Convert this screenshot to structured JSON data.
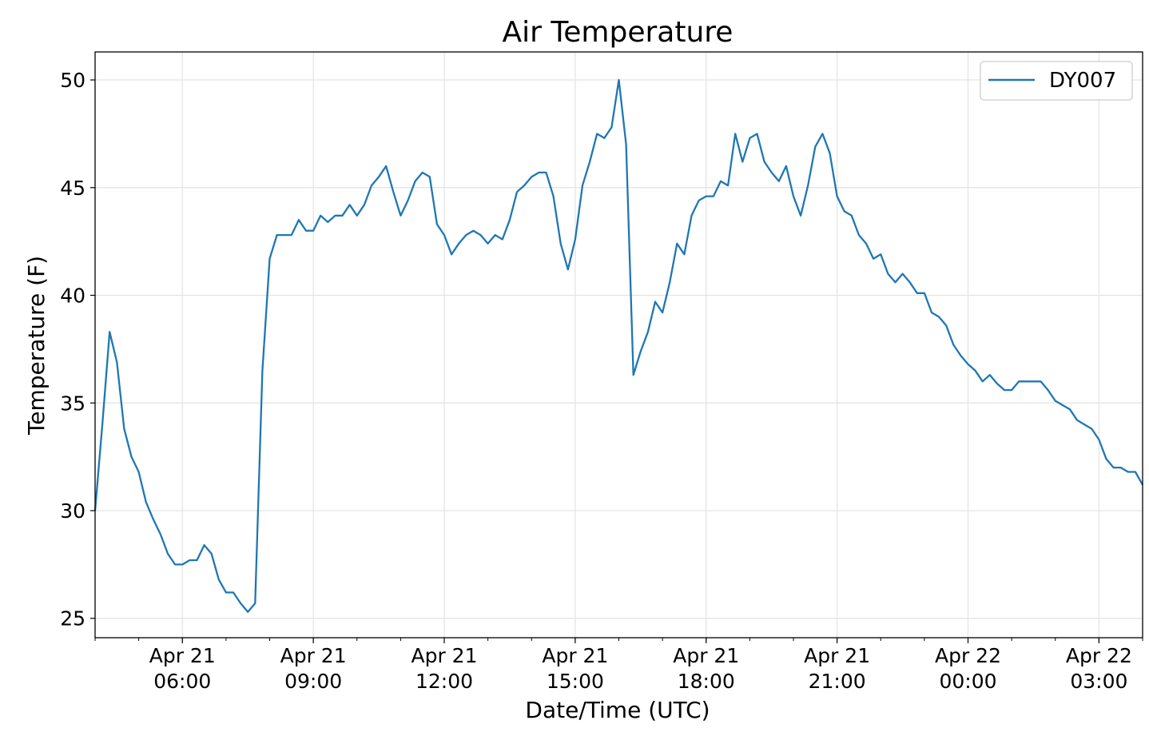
{
  "chart_data": {
    "type": "line",
    "title": "Air Temperature",
    "xlabel": "Date/Time (UTC)",
    "ylabel": "Temperature (F)",
    "xlim": [
      "2018-04-21T04:00",
      "2018-04-22T04:00"
    ],
    "ylim": [
      24.1,
      51.3
    ],
    "grid": true,
    "legend_position": "top-right",
    "y_ticks": [
      25,
      30,
      35,
      40,
      45,
      50
    ],
    "x_ticks": [
      {
        "x": "2018-04-21T06:00",
        "line1": "Apr 21",
        "line2": "06:00"
      },
      {
        "x": "2018-04-21T09:00",
        "line1": "Apr 21",
        "line2": "09:00"
      },
      {
        "x": "2018-04-21T12:00",
        "line1": "Apr 21",
        "line2": "12:00"
      },
      {
        "x": "2018-04-21T15:00",
        "line1": "Apr 21",
        "line2": "15:00"
      },
      {
        "x": "2018-04-21T18:00",
        "line1": "Apr 21",
        "line2": "18:00"
      },
      {
        "x": "2018-04-21T21:00",
        "line1": "Apr 21",
        "line2": "21:00"
      },
      {
        "x": "2018-04-22T00:00",
        "line1": "Apr 22",
        "line2": "00:00"
      },
      {
        "x": "2018-04-22T03:00",
        "line1": "Apr 22",
        "line2": "03:00"
      }
    ],
    "series": [
      {
        "name": "DY007",
        "color": "#1f77b4",
        "x": [
          "2018-04-21T04:00",
          "2018-04-21T04:10",
          "2018-04-21T04:20",
          "2018-04-21T04:30",
          "2018-04-21T04:40",
          "2018-04-21T04:50",
          "2018-04-21T05:00",
          "2018-04-21T05:10",
          "2018-04-21T05:20",
          "2018-04-21T05:30",
          "2018-04-21T05:40",
          "2018-04-21T05:50",
          "2018-04-21T06:00",
          "2018-04-21T06:10",
          "2018-04-21T06:20",
          "2018-04-21T06:30",
          "2018-04-21T06:40",
          "2018-04-21T06:50",
          "2018-04-21T07:00",
          "2018-04-21T07:10",
          "2018-04-21T07:20",
          "2018-04-21T07:30",
          "2018-04-21T07:40",
          "2018-04-21T07:50",
          "2018-04-21T08:00",
          "2018-04-21T08:10",
          "2018-04-21T08:20",
          "2018-04-21T08:30",
          "2018-04-21T08:40",
          "2018-04-21T08:50",
          "2018-04-21T09:00",
          "2018-04-21T09:10",
          "2018-04-21T09:20",
          "2018-04-21T09:30",
          "2018-04-21T09:40",
          "2018-04-21T09:50",
          "2018-04-21T10:00",
          "2018-04-21T10:10",
          "2018-04-21T10:20",
          "2018-04-21T10:30",
          "2018-04-21T10:40",
          "2018-04-21T10:50",
          "2018-04-21T11:00",
          "2018-04-21T11:10",
          "2018-04-21T11:20",
          "2018-04-21T11:30",
          "2018-04-21T11:40",
          "2018-04-21T11:50",
          "2018-04-21T12:00",
          "2018-04-21T12:10",
          "2018-04-21T12:20",
          "2018-04-21T12:30",
          "2018-04-21T12:40",
          "2018-04-21T12:50",
          "2018-04-21T13:00",
          "2018-04-21T13:10",
          "2018-04-21T13:20",
          "2018-04-21T13:30",
          "2018-04-21T13:40",
          "2018-04-21T13:50",
          "2018-04-21T14:00",
          "2018-04-21T14:10",
          "2018-04-21T14:20",
          "2018-04-21T14:30",
          "2018-04-21T14:40",
          "2018-04-21T14:50",
          "2018-04-21T15:00",
          "2018-04-21T15:10",
          "2018-04-21T15:20",
          "2018-04-21T15:30",
          "2018-04-21T15:40",
          "2018-04-21T15:50",
          "2018-04-21T16:00",
          "2018-04-21T16:10",
          "2018-04-21T16:20",
          "2018-04-21T16:30",
          "2018-04-21T16:40",
          "2018-04-21T16:50",
          "2018-04-21T17:00",
          "2018-04-21T17:10",
          "2018-04-21T17:20",
          "2018-04-21T17:30",
          "2018-04-21T17:40",
          "2018-04-21T17:50",
          "2018-04-21T18:00",
          "2018-04-21T18:10",
          "2018-04-21T18:20",
          "2018-04-21T18:30",
          "2018-04-21T18:40",
          "2018-04-21T18:50",
          "2018-04-21T19:00",
          "2018-04-21T19:10",
          "2018-04-21T19:20",
          "2018-04-21T19:30",
          "2018-04-21T19:40",
          "2018-04-21T19:50",
          "2018-04-21T20:00",
          "2018-04-21T20:10",
          "2018-04-21T20:20",
          "2018-04-21T20:30",
          "2018-04-21T20:40",
          "2018-04-21T20:50",
          "2018-04-21T21:00",
          "2018-04-21T21:10",
          "2018-04-21T21:20",
          "2018-04-21T21:30",
          "2018-04-21T21:40",
          "2018-04-21T21:50",
          "2018-04-21T22:00",
          "2018-04-21T22:10",
          "2018-04-21T22:20",
          "2018-04-21T22:30",
          "2018-04-21T22:40",
          "2018-04-21T22:50",
          "2018-04-21T23:00",
          "2018-04-21T23:10",
          "2018-04-21T23:20",
          "2018-04-21T23:30",
          "2018-04-21T23:40",
          "2018-04-21T23:50",
          "2018-04-22T00:00",
          "2018-04-22T00:10",
          "2018-04-22T00:20",
          "2018-04-22T00:30",
          "2018-04-22T00:40",
          "2018-04-22T00:50",
          "2018-04-22T01:00",
          "2018-04-22T01:10",
          "2018-04-22T01:20",
          "2018-04-22T01:30",
          "2018-04-22T01:40",
          "2018-04-22T01:50",
          "2018-04-22T02:00",
          "2018-04-22T02:10",
          "2018-04-22T02:20",
          "2018-04-22T02:30",
          "2018-04-22T02:40",
          "2018-04-22T02:50",
          "2018-04-22T03:00",
          "2018-04-22T03:10",
          "2018-04-22T03:20",
          "2018-04-22T03:30",
          "2018-04-22T03:40",
          "2018-04-22T03:50",
          "2018-04-22T04:00"
        ],
        "y": [
          30.0,
          34.0,
          38.3,
          36.9,
          33.8,
          32.5,
          31.8,
          30.4,
          29.6,
          28.9,
          28.0,
          27.5,
          27.5,
          27.7,
          27.7,
          28.4,
          28.0,
          26.8,
          26.2,
          26.2,
          25.7,
          25.3,
          25.7,
          36.5,
          41.7,
          42.8,
          42.8,
          42.8,
          43.5,
          43.0,
          43.0,
          43.7,
          43.4,
          43.7,
          43.7,
          44.2,
          43.7,
          44.2,
          45.1,
          45.5,
          46.0,
          44.8,
          43.7,
          44.4,
          45.3,
          45.7,
          45.5,
          43.3,
          42.8,
          41.9,
          42.4,
          42.8,
          43.0,
          42.8,
          42.4,
          42.8,
          42.6,
          43.5,
          44.8,
          45.1,
          45.5,
          45.7,
          45.7,
          44.6,
          42.4,
          41.2,
          42.6,
          45.1,
          46.2,
          47.5,
          47.3,
          47.8,
          50.0,
          47.0,
          36.3,
          37.4,
          38.3,
          39.7,
          39.2,
          40.6,
          42.4,
          41.9,
          43.7,
          44.4,
          44.6,
          44.6,
          45.3,
          45.1,
          47.5,
          46.2,
          47.3,
          47.5,
          46.2,
          45.7,
          45.3,
          46.0,
          44.6,
          43.7,
          45.1,
          46.9,
          47.5,
          46.6,
          44.6,
          43.9,
          43.7,
          42.8,
          42.4,
          41.7,
          41.9,
          41.0,
          40.6,
          41.0,
          40.6,
          40.1,
          40.1,
          39.2,
          39.0,
          38.6,
          37.7,
          37.2,
          36.8,
          36.5,
          36.0,
          36.3,
          35.9,
          35.6,
          35.6,
          36.0,
          36.0,
          36.0,
          36.0,
          35.6,
          35.1,
          34.9,
          34.7,
          34.2,
          34.0,
          33.8,
          33.3,
          32.4,
          32.0,
          32.0,
          31.8,
          31.8,
          31.2
        ]
      }
    ]
  }
}
